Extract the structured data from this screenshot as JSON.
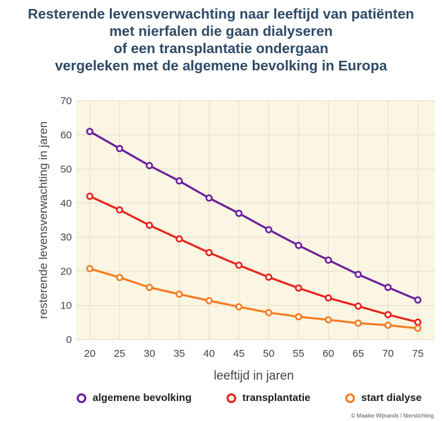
{
  "chart_data": {
    "type": "line",
    "title_lines": [
      "Resterende levensverwachting naar leeftijd van patiënten",
      "met nierfalen die gaan dialyseren",
      "of een transplantatie ondergaan",
      "vergeleken met de algemene bevolking in Europa"
    ],
    "xlabel": "leeftijd in jaren",
    "ylabel": "resterende levensverwachting  in jaren",
    "x": [
      20,
      25,
      30,
      35,
      40,
      45,
      50,
      55,
      60,
      65,
      70,
      75
    ],
    "xlim": [
      20,
      75
    ],
    "ylim": [
      0,
      70
    ],
    "yticks": [
      0,
      10,
      20,
      30,
      40,
      50,
      60,
      70
    ],
    "grid": true,
    "series": [
      {
        "name": "algemene bevolking",
        "color": "#6b1e9e",
        "values": [
          61,
          56,
          51,
          46.5,
          41.5,
          37,
          32.2,
          27.6,
          23.3,
          19.1,
          15.3,
          11.6
        ]
      },
      {
        "name": "transplantatie",
        "color": "#e8221d",
        "values": [
          42,
          38,
          33.5,
          29.5,
          25.5,
          21.8,
          18.3,
          15.1,
          12.2,
          9.8,
          7.3,
          5.1
        ]
      },
      {
        "name": "start dialyse",
        "color": "#f57c20",
        "values": [
          20.8,
          18.2,
          15.3,
          13.3,
          11.4,
          9.6,
          7.9,
          6.7,
          5.8,
          4.8,
          4.2,
          3.3
        ]
      }
    ],
    "legend_position": "bottom"
  },
  "credit": "© Maaike Wijnands / Nierstichting"
}
